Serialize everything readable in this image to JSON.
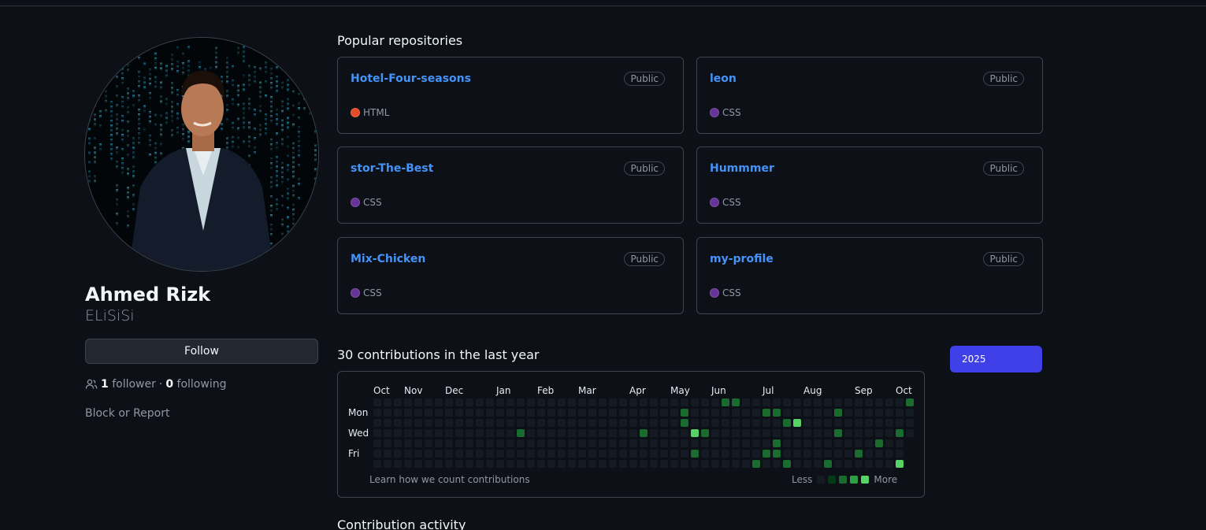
{
  "profile": {
    "name": "Ahmed Rizk",
    "login": "ELiSiSi",
    "follow_label": "Follow",
    "followers_count": "1",
    "followers_label": "follower",
    "separator": "·",
    "following_count": "0",
    "following_label": "following",
    "block_label": "Block or Report"
  },
  "popular": {
    "title": "Popular repositories",
    "repos": [
      {
        "name": "Hotel-Four-seasons",
        "visibility": "Public",
        "language": "HTML",
        "lang_color": "#e34c26"
      },
      {
        "name": "leon",
        "visibility": "Public",
        "language": "CSS",
        "lang_color": "#663399"
      },
      {
        "name": "stor-The-Best",
        "visibility": "Public",
        "language": "CSS",
        "lang_color": "#663399"
      },
      {
        "name": "Hummmer",
        "visibility": "Public",
        "language": "CSS",
        "lang_color": "#663399"
      },
      {
        "name": "Mix-Chicken",
        "visibility": "Public",
        "language": "CSS",
        "lang_color": "#663399"
      },
      {
        "name": "my-profile",
        "visibility": "Public",
        "language": "CSS",
        "lang_color": "#663399"
      }
    ]
  },
  "contributions": {
    "title": "30 contributions in the last year",
    "year_button": "2025",
    "months": [
      "Oct",
      "Nov",
      "Dec",
      "Jan",
      "Feb",
      "Mar",
      "Apr",
      "May",
      "Jun",
      "Jul",
      "Aug",
      "Sep",
      "Oct"
    ],
    "day_labels": [
      "Mon",
      "Wed",
      "Fri"
    ],
    "learn_label": "Learn how we count contributions",
    "legend_less": "Less",
    "legend_more": "More",
    "level_colors": [
      "#151b23",
      "#033a16",
      "#196c2e",
      "#2ea043",
      "#56d364"
    ],
    "weeks": 53,
    "active_cells": [
      {
        "week": 14,
        "day": 3,
        "level": 2
      },
      {
        "week": 26,
        "day": 3,
        "level": 2
      },
      {
        "week": 30,
        "day": 1,
        "level": 2
      },
      {
        "week": 30,
        "day": 2,
        "level": 2
      },
      {
        "week": 31,
        "day": 3,
        "level": 4
      },
      {
        "week": 31,
        "day": 5,
        "level": 2
      },
      {
        "week": 32,
        "day": 3,
        "level": 2
      },
      {
        "week": 34,
        "day": 0,
        "level": 2
      },
      {
        "week": 35,
        "day": 0,
        "level": 2
      },
      {
        "week": 37,
        "day": 6,
        "level": 2
      },
      {
        "week": 38,
        "day": 1,
        "level": 2
      },
      {
        "week": 38,
        "day": 5,
        "level": 2
      },
      {
        "week": 39,
        "day": 1,
        "level": 2
      },
      {
        "week": 39,
        "day": 4,
        "level": 2
      },
      {
        "week": 39,
        "day": 5,
        "level": 2
      },
      {
        "week": 40,
        "day": 2,
        "level": 2
      },
      {
        "week": 40,
        "day": 6,
        "level": 2
      },
      {
        "week": 41,
        "day": 2,
        "level": 4
      },
      {
        "week": 44,
        "day": 6,
        "level": 2
      },
      {
        "week": 45,
        "day": 1,
        "level": 2
      },
      {
        "week": 45,
        "day": 3,
        "level": 2
      },
      {
        "week": 47,
        "day": 5,
        "level": 2
      },
      {
        "week": 49,
        "day": 4,
        "level": 2
      },
      {
        "week": 51,
        "day": 3,
        "level": 2
      },
      {
        "week": 51,
        "day": 6,
        "level": 4
      },
      {
        "week": 52,
        "day": 0,
        "level": 2
      }
    ]
  },
  "activity": {
    "title": "Contribution activity"
  }
}
